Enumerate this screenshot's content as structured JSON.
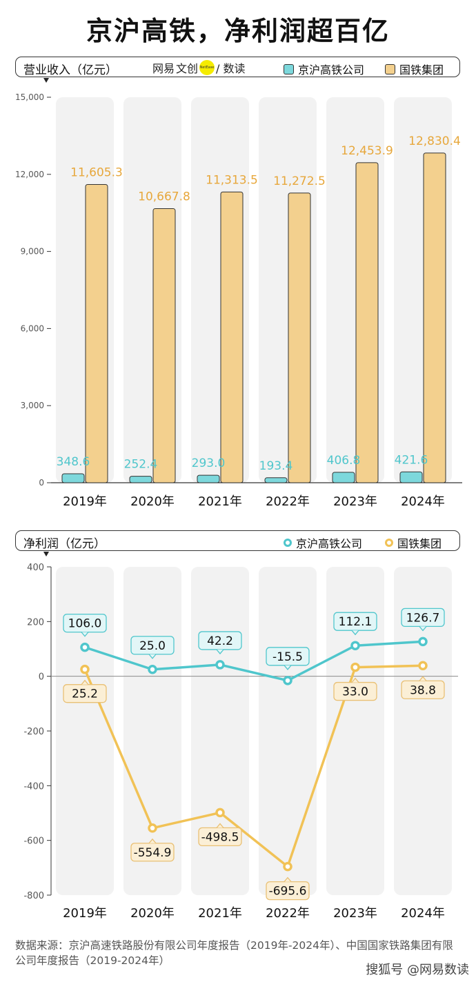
{
  "title": "京沪高铁，净利润超百亿",
  "logo": {
    "text1": "网易",
    "text2": "文创",
    "badge": "NetEase",
    "text3": "/ 数读"
  },
  "series_names": [
    "京沪高铁公司",
    "国铁集团"
  ],
  "colors": {
    "jinghu": "#4fc6cc",
    "guotie": "#f1c256",
    "guotie_bar": "#f3d08e",
    "jinghu_bar": "#7dd8dc",
    "column_bg": "#f2f2f2",
    "jinghu_label_bg": "#e2f6f7",
    "guotie_label_bg": "#fbefd6"
  },
  "footer": "数据来源：京沪高速铁路股份有限公司年度报告（2019年-2024年）、中国国家铁路集团有限公司年度报告（2019-2024年）",
  "watermark": "搜狐号 @网易数读",
  "chart_data": [
    {
      "type": "bar",
      "title": "营业收入（亿元）",
      "categories": [
        "2019年",
        "2020年",
        "2021年",
        "2022年",
        "2023年",
        "2024年"
      ],
      "series": [
        {
          "name": "京沪高铁公司",
          "values": [
            348.6,
            252.4,
            293.0,
            193.4,
            406.8,
            421.6
          ],
          "labels": [
            "348.6",
            "252.4",
            "293.0",
            "193.4",
            "406.8",
            "421.6"
          ]
        },
        {
          "name": "国铁集团",
          "values": [
            11605.3,
            10667.8,
            11313.5,
            11272.5,
            12453.9,
            12830.4
          ],
          "labels": [
            "11,605.3",
            "10,667.8",
            "11,313.5",
            "11,272.5",
            "12,453.9",
            "12,830.4"
          ]
        }
      ],
      "ylim": [
        0,
        15000
      ],
      "yticks": [
        0,
        3000,
        6000,
        9000,
        12000,
        15000
      ],
      "ytick_labels": [
        "0",
        "3,000",
        "6,000",
        "9,000",
        "12,000",
        "15,000"
      ],
      "legend": "top-right",
      "grid": false
    },
    {
      "type": "line",
      "title": "净利润（亿元）",
      "categories": [
        "2019年",
        "2020年",
        "2021年",
        "2022年",
        "2023年",
        "2024年"
      ],
      "series": [
        {
          "name": "京沪高铁公司",
          "values": [
            106.0,
            25.0,
            42.2,
            -15.5,
            112.1,
            126.7
          ],
          "labels": [
            "106.0",
            "25.0",
            "42.2",
            "-15.5",
            "112.1",
            "126.7"
          ]
        },
        {
          "name": "国铁集团",
          "values": [
            25.2,
            -554.9,
            -498.5,
            -695.6,
            33.0,
            38.8
          ],
          "labels": [
            "25.2",
            "-554.9",
            "-498.5",
            "-695.6",
            "33.0",
            "38.8"
          ]
        }
      ],
      "ylim": [
        -800,
        400
      ],
      "yticks": [
        -800,
        -600,
        -400,
        -200,
        0,
        200,
        400
      ],
      "ytick_labels": [
        "-800",
        "-600",
        "-400",
        "-200",
        "0",
        "200",
        "400"
      ],
      "legend": "top-right",
      "grid": false
    }
  ]
}
